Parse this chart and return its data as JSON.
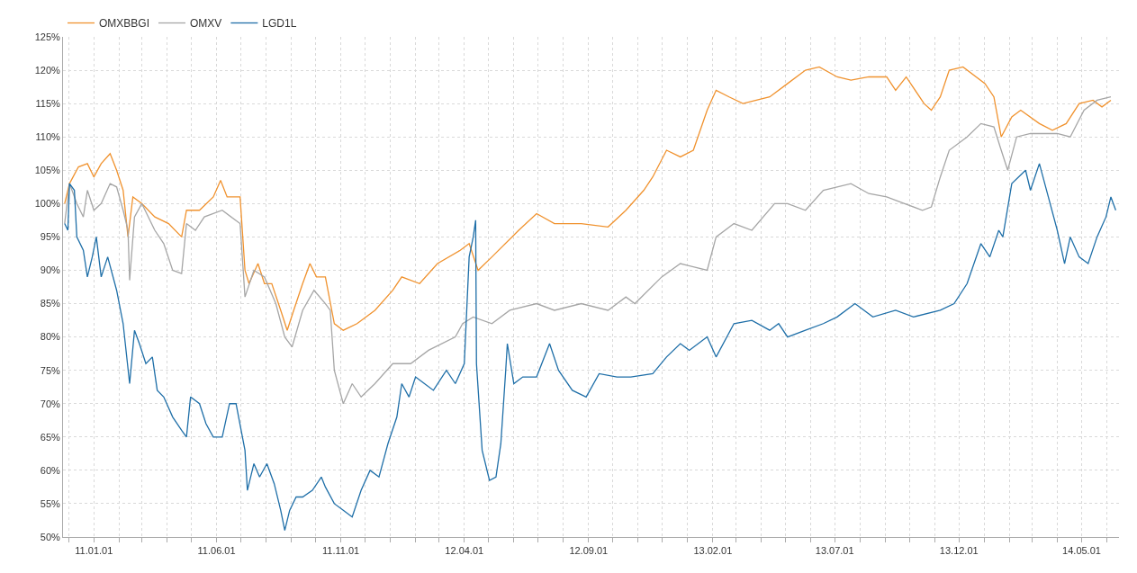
{
  "chart_data": {
    "type": "line",
    "xlim": [
      "2010-11-24",
      "2014-06-16"
    ],
    "ylim": [
      50,
      125
    ],
    "xticks": [
      {
        "value": "2010-12-01",
        "label": null
      },
      {
        "value": "2011-01-01",
        "label": "11.01.01"
      },
      {
        "value": "2011-02-01",
        "label": null
      },
      {
        "value": "2011-03-01",
        "label": null
      },
      {
        "value": "2011-04-01",
        "label": null
      },
      {
        "value": "2011-05-01",
        "label": null
      },
      {
        "value": "2011-06-01",
        "label": "11.06.01"
      },
      {
        "value": "2011-07-01",
        "label": null
      },
      {
        "value": "2011-08-01",
        "label": null
      },
      {
        "value": "2011-09-01",
        "label": null
      },
      {
        "value": "2011-10-01",
        "label": null
      },
      {
        "value": "2011-11-01",
        "label": "11.11.01"
      },
      {
        "value": "2011-12-01",
        "label": null
      },
      {
        "value": "2012-01-01",
        "label": null
      },
      {
        "value": "2012-02-01",
        "label": null
      },
      {
        "value": "2012-03-01",
        "label": null
      },
      {
        "value": "2012-04-01",
        "label": "12.04.01"
      },
      {
        "value": "2012-05-01",
        "label": null
      },
      {
        "value": "2012-06-01",
        "label": null
      },
      {
        "value": "2012-07-01",
        "label": null
      },
      {
        "value": "2012-08-01",
        "label": null
      },
      {
        "value": "2012-09-01",
        "label": "12.09.01"
      },
      {
        "value": "2012-10-01",
        "label": null
      },
      {
        "value": "2012-11-01",
        "label": null
      },
      {
        "value": "2012-12-01",
        "label": null
      },
      {
        "value": "2013-01-01",
        "label": null
      },
      {
        "value": "2013-02-01",
        "label": "13.02.01"
      },
      {
        "value": "2013-03-01",
        "label": null
      },
      {
        "value": "2013-04-01",
        "label": null
      },
      {
        "value": "2013-05-01",
        "label": null
      },
      {
        "value": "2013-06-01",
        "label": null
      },
      {
        "value": "2013-07-01",
        "label": "13.07.01"
      },
      {
        "value": "2013-08-01",
        "label": null
      },
      {
        "value": "2013-09-01",
        "label": null
      },
      {
        "value": "2013-10-01",
        "label": null
      },
      {
        "value": "2013-11-01",
        "label": null
      },
      {
        "value": "2013-12-01",
        "label": "13.12.01"
      },
      {
        "value": "2014-01-01",
        "label": null
      },
      {
        "value": "2014-02-01",
        "label": null
      },
      {
        "value": "2014-03-01",
        "label": null
      },
      {
        "value": "2014-04-01",
        "label": null
      },
      {
        "value": "2014-05-01",
        "label": "14.05.01"
      },
      {
        "value": "2014-06-01",
        "label": null
      }
    ],
    "yticks": [
      {
        "value": 50,
        "label": "50%"
      },
      {
        "value": 55,
        "label": "55%"
      },
      {
        "value": 60,
        "label": "60%"
      },
      {
        "value": 65,
        "label": "65%"
      },
      {
        "value": 70,
        "label": "70%"
      },
      {
        "value": 75,
        "label": "75%"
      },
      {
        "value": 80,
        "label": "80%"
      },
      {
        "value": 85,
        "label": "85%"
      },
      {
        "value": 90,
        "label": "90%"
      },
      {
        "value": 95,
        "label": "95%"
      },
      {
        "value": 100,
        "label": "100%"
      },
      {
        "value": 105,
        "label": "105%"
      },
      {
        "value": 110,
        "label": "110%"
      },
      {
        "value": 115,
        "label": "115%"
      },
      {
        "value": 120,
        "label": "120%"
      },
      {
        "value": 125,
        "label": "125%"
      }
    ],
    "grid": true,
    "legend": "top left",
    "marker": "none",
    "line_style": "solid",
    "series": [
      {
        "name": "OMXBBGI",
        "color": "#f0922e",
        "x": [
          "2010-11-26",
          "2010-12-02",
          "2010-12-13",
          "2010-12-24",
          "2011-01-01",
          "2011-01-10",
          "2011-01-21",
          "2011-01-29",
          "2011-02-06",
          "2011-02-12",
          "2011-02-18",
          "2011-03-01",
          "2011-03-17",
          "2011-04-03",
          "2011-04-19",
          "2011-04-25",
          "2011-05-11",
          "2011-05-28",
          "2011-06-06",
          "2011-06-14",
          "2011-06-30",
          "2011-07-06",
          "2011-07-11",
          "2011-07-22",
          "2011-07-30",
          "2011-08-08",
          "2011-08-19",
          "2011-08-27",
          "2011-09-04",
          "2011-09-15",
          "2011-09-24",
          "2011-10-02",
          "2011-10-13",
          "2011-10-24",
          "2011-11-04",
          "2011-11-21",
          "2011-12-13",
          "2012-01-04",
          "2012-01-15",
          "2012-02-06",
          "2012-02-28",
          "2012-03-27",
          "2012-04-07",
          "2012-04-18",
          "2012-05-05",
          "2012-06-07",
          "2012-06-29",
          "2012-07-21",
          "2012-08-23",
          "2012-09-25",
          "2012-10-17",
          "2012-11-08",
          "2012-11-19",
          "2012-12-06",
          "2012-12-23",
          "2013-01-08",
          "2013-01-25",
          "2013-02-05",
          "2013-02-21",
          "2013-03-10",
          "2013-04-12",
          "2013-05-04",
          "2013-05-26",
          "2013-06-12",
          "2013-07-04",
          "2013-07-21",
          "2013-08-12",
          "2013-09-03",
          "2013-09-14",
          "2013-09-27",
          "2013-10-19",
          "2013-10-28",
          "2013-11-08",
          "2013-11-19",
          "2013-12-06",
          "2014-01-02",
          "2014-01-13",
          "2014-01-22",
          "2014-02-04",
          "2014-02-15",
          "2014-03-10",
          "2014-03-26",
          "2014-04-12",
          "2014-04-28",
          "2014-05-15",
          "2014-05-26",
          "2014-06-06"
        ],
        "values": [
          100,
          103,
          105.5,
          106,
          104,
          106,
          107.5,
          105,
          102,
          95,
          101,
          100,
          98,
          97,
          95,
          99,
          99,
          101,
          103.5,
          101,
          101,
          90,
          88,
          91,
          88,
          88,
          84,
          81,
          84,
          88,
          91,
          89,
          89,
          82,
          81,
          82,
          84,
          87,
          89,
          88,
          91,
          93,
          94,
          90,
          92,
          96,
          98.5,
          97,
          97,
          96.5,
          99,
          102,
          104,
          108,
          107,
          108,
          114,
          117,
          116,
          115,
          116,
          118,
          120,
          120.5,
          119,
          118.5,
          119,
          119,
          117,
          119,
          115,
          114,
          116,
          120,
          120.5,
          118,
          116,
          110,
          113,
          114,
          112,
          111,
          112,
          115,
          115.5,
          114.5,
          115.5
        ]
      },
      {
        "name": "OMXV",
        "color": "#a6a6a6",
        "x": [
          "2010-11-26",
          "2010-12-02",
          "2010-12-11",
          "2010-12-19",
          "2010-12-24",
          "2011-01-01",
          "2011-01-10",
          "2011-01-21",
          "2011-01-29",
          "2011-02-06",
          "2011-02-12",
          "2011-02-14",
          "2011-02-20",
          "2011-03-01",
          "2011-03-17",
          "2011-03-28",
          "2011-04-08",
          "2011-04-19",
          "2011-04-25",
          "2011-05-06",
          "2011-05-17",
          "2011-06-08",
          "2011-06-30",
          "2011-07-06",
          "2011-07-17",
          "2011-07-30",
          "2011-08-13",
          "2011-08-24",
          "2011-09-02",
          "2011-09-15",
          "2011-09-29",
          "2011-10-13",
          "2011-10-19",
          "2011-10-24",
          "2011-11-04",
          "2011-11-15",
          "2011-11-26",
          "2011-12-13",
          "2012-01-04",
          "2012-01-26",
          "2012-02-17",
          "2012-03-21",
          "2012-03-30",
          "2012-04-12",
          "2012-05-05",
          "2012-05-27",
          "2012-06-29",
          "2012-07-21",
          "2012-08-23",
          "2012-09-25",
          "2012-10-17",
          "2012-10-28",
          "2012-11-30",
          "2012-12-23",
          "2013-01-25",
          "2013-02-05",
          "2013-02-27",
          "2013-03-21",
          "2013-04-18",
          "2013-05-04",
          "2013-05-26",
          "2013-06-17",
          "2013-07-21",
          "2013-08-12",
          "2013-09-03",
          "2013-09-25",
          "2013-10-17",
          "2013-10-28",
          "2013-11-08",
          "2013-11-19",
          "2013-12-11",
          "2013-12-28",
          "2014-01-13",
          "2014-01-22",
          "2014-01-30",
          "2014-02-10",
          "2014-02-27",
          "2014-04-01",
          "2014-04-17",
          "2014-05-04",
          "2014-05-20",
          "2014-06-06"
        ],
        "values": [
          97,
          103,
          100,
          98,
          102,
          99,
          100,
          103,
          102.5,
          99,
          96,
          88.5,
          98,
          100,
          96,
          94,
          90,
          89.5,
          97,
          96,
          98,
          99,
          97,
          86,
          90,
          89,
          85,
          80,
          78.5,
          84,
          87,
          85,
          84,
          75,
          70,
          73,
          71,
          73,
          76,
          76,
          78,
          80,
          82,
          83,
          82,
          84,
          85,
          84,
          85,
          84,
          86,
          85,
          89,
          91,
          90,
          95,
          97,
          96,
          100,
          100,
          99,
          102,
          103,
          101.5,
          101,
          100,
          99,
          99.5,
          104,
          108,
          110,
          112,
          111.5,
          108,
          105,
          110,
          110.5,
          110.5,
          110,
          114,
          115.5,
          116
        ]
      },
      {
        "name": "LGD1L",
        "color": "#1f6fa8",
        "x": [
          "2010-11-26",
          "2010-11-30",
          "2010-12-02",
          "2010-12-08",
          "2010-12-11",
          "2010-12-19",
          "2010-12-24",
          "2010-12-30",
          "2011-01-04",
          "2011-01-10",
          "2011-01-18",
          "2011-01-29",
          "2011-02-06",
          "2011-02-14",
          "2011-02-20",
          "2011-02-26",
          "2011-03-06",
          "2011-03-14",
          "2011-03-20",
          "2011-03-28",
          "2011-04-08",
          "2011-04-19",
          "2011-04-25",
          "2011-04-30",
          "2011-05-11",
          "2011-05-19",
          "2011-05-28",
          "2011-06-08",
          "2011-06-17",
          "2011-06-25",
          "2011-07-06",
          "2011-07-09",
          "2011-07-17",
          "2011-07-24",
          "2011-08-02",
          "2011-08-11",
          "2011-08-19",
          "2011-08-24",
          "2011-08-30",
          "2011-09-07",
          "2011-09-15",
          "2011-09-27",
          "2011-10-08",
          "2011-10-13",
          "2011-10-24",
          "2011-11-04",
          "2011-11-15",
          "2011-11-26",
          "2011-12-07",
          "2011-12-18",
          "2011-12-29",
          "2012-01-09",
          "2012-01-15",
          "2012-01-24",
          "2012-02-01",
          "2012-02-12",
          "2012-02-23",
          "2012-03-10",
          "2012-03-21",
          "2012-04-01",
          "2012-04-07",
          "2012-04-12",
          "2012-04-15",
          "2012-04-16",
          "2012-04-23",
          "2012-05-02",
          "2012-05-10",
          "2012-05-16",
          "2012-05-22",
          "2012-05-24",
          "2012-06-01",
          "2012-06-12",
          "2012-06-29",
          "2012-07-15",
          "2012-07-26",
          "2012-08-12",
          "2012-08-29",
          "2012-09-14",
          "2012-10-06",
          "2012-10-23",
          "2012-11-19",
          "2012-12-06",
          "2012-12-23",
          "2013-01-03",
          "2013-01-25",
          "2013-02-05",
          "2013-02-27",
          "2013-03-21",
          "2013-04-12",
          "2013-04-23",
          "2013-05-04",
          "2013-05-26",
          "2013-06-17",
          "2013-07-04",
          "2013-07-26",
          "2013-08-17",
          "2013-09-14",
          "2013-10-06",
          "2013-11-08",
          "2013-11-25",
          "2013-12-11",
          "2013-12-28",
          "2014-01-08",
          "2014-01-19",
          "2014-01-24",
          "2014-02-04",
          "2014-02-21",
          "2014-02-27",
          "2014-03-10",
          "2014-03-21",
          "2014-04-01",
          "2014-04-10",
          "2014-04-17",
          "2014-04-28",
          "2014-05-09",
          "2014-05-20",
          "2014-05-31",
          "2014-06-06",
          "2014-06-12"
        ],
        "values": [
          97,
          96,
          103,
          102,
          95,
          93,
          89,
          92,
          95,
          89,
          92,
          87,
          82,
          73,
          81,
          79,
          76,
          77,
          72,
          71,
          68,
          66,
          65,
          71,
          70,
          67,
          65,
          65,
          70,
          70,
          63,
          57,
          61,
          59,
          61,
          58,
          54,
          51,
          54,
          56,
          56,
          57,
          59,
          57.5,
          55,
          54,
          53,
          57,
          60,
          59,
          64,
          68,
          73,
          71,
          74,
          73,
          72,
          75,
          73,
          76,
          92,
          95,
          97.5,
          76,
          63,
          58.5,
          59,
          64,
          75,
          79,
          73,
          74,
          74,
          79,
          75,
          72,
          71,
          74.5,
          74,
          74,
          74.5,
          77,
          79,
          78,
          80,
          77,
          82,
          82.5,
          81,
          82,
          80,
          81,
          82,
          83,
          85,
          83,
          84,
          83,
          84,
          85,
          88,
          94,
          92,
          96,
          95,
          103,
          105,
          102,
          106,
          101,
          96,
          91,
          95,
          92,
          91,
          95,
          98,
          101,
          99
        ]
      }
    ]
  }
}
